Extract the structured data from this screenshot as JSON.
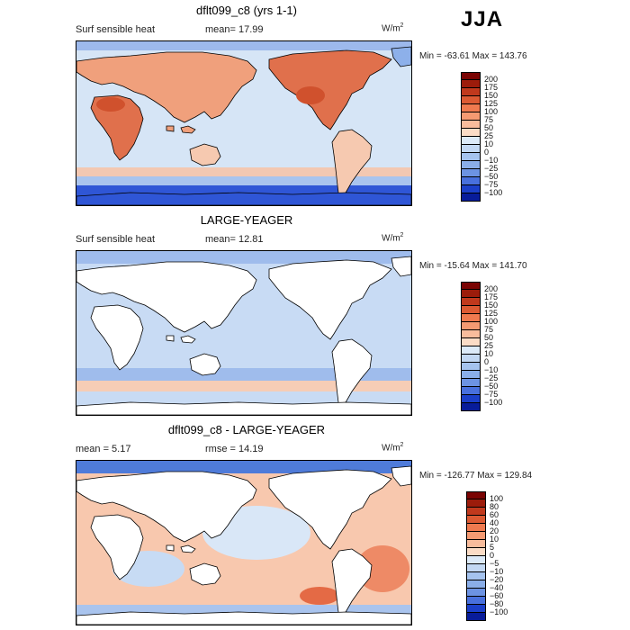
{
  "season": "JJA",
  "panels": [
    {
      "title": "dflt099_c8 (yrs 1-1)",
      "left_label": "Surf sensible heat",
      "mean_text": "mean=  17.99",
      "units": "W/m",
      "units_sup": "2",
      "minmax": "Min = -63.61  Max = 143.76",
      "colorbar": {
        "labels": [
          "200",
          "175",
          "150",
          "125",
          "100",
          "75",
          "50",
          "25",
          "10",
          "0",
          "−10",
          "−25",
          "−50",
          "−75",
          "−100"
        ],
        "colors": [
          "#7a0403",
          "#9c1c0b",
          "#c0391d",
          "#dc5a33",
          "#ef7a4f",
          "#f59a72",
          "#f8bc9c",
          "#fbdcc6",
          "#dceaf8",
          "#c3d8f3",
          "#a5c3ee",
          "#8aaee9",
          "#6c93e3",
          "#4870dd",
          "#1b3fc9",
          "#081c9a"
        ]
      },
      "fields": {
        "ocean": "#d6e5f6",
        "band_south": "#2f56d6",
        "land_warm": "#f0a07c",
        "land_hot": "#e0704c",
        "land_mild": "#f6c9b0"
      }
    },
    {
      "title": "LARGE-YEAGER",
      "left_label": "Surf sensible heat",
      "mean_text": "mean=  12.81",
      "units": "W/m",
      "units_sup": "2",
      "minmax": "Min = -15.64  Max = 141.70",
      "colorbar": {
        "labels": [
          "200",
          "175",
          "150",
          "125",
          "100",
          "75",
          "50",
          "25",
          "10",
          "0",
          "−10",
          "−25",
          "−50",
          "−75",
          "−100"
        ],
        "colors": [
          "#7a0403",
          "#9c1c0b",
          "#c0391d",
          "#dc5a33",
          "#ef7a4f",
          "#f59a72",
          "#f8bc9c",
          "#fbdcc6",
          "#dceaf8",
          "#c3d8f3",
          "#a5c3ee",
          "#8aaee9",
          "#6c93e3",
          "#4870dd",
          "#1b3fc9",
          "#081c9a"
        ]
      },
      "fields": {
        "ocean": "#c8dbf4",
        "band_south": "#d6e5f6",
        "land_warm": "#ffffff",
        "land_hot": "#ffffff",
        "land_mild": "#ffffff"
      }
    },
    {
      "title": "dflt099_c8 - LARGE-YEAGER",
      "left_label": "mean =    5.17",
      "mean_text": "rmse =  14.19",
      "units": "W/m",
      "units_sup": "2",
      "minmax": "Min = -126.77  Max = 129.84",
      "colorbar": {
        "labels": [
          "100",
          "80",
          "60",
          "40",
          "20",
          "10",
          "5",
          "0",
          "−5",
          "−10",
          "−20",
          "−40",
          "−60",
          "−80",
          "−100"
        ],
        "colors": [
          "#7a0403",
          "#9c1c0b",
          "#c0391d",
          "#dc5a33",
          "#ef7a4f",
          "#f59a72",
          "#f8bc9c",
          "#fbdcc6",
          "#dceaf8",
          "#c3d8f3",
          "#a5c3ee",
          "#8aaee9",
          "#6c93e3",
          "#4870dd",
          "#1b3fc9",
          "#081c9a"
        ]
      },
      "fields": {
        "ocean": "#f8c8ae",
        "band_south": "#f6b79a",
        "land_warm": "#ffffff",
        "land_hot": "#ffffff",
        "land_mild": "#ffffff"
      }
    }
  ]
}
